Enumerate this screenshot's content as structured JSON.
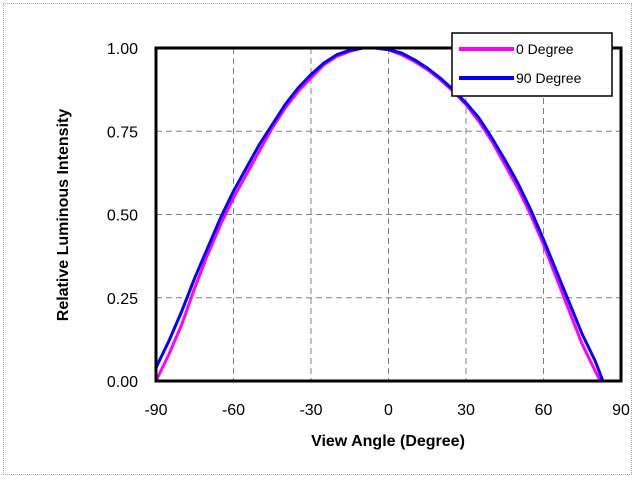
{
  "chart_data": {
    "type": "line",
    "title": "",
    "xlabel": "View Angle (Degree)",
    "ylabel": "Relative Luminous Intensity",
    "xlim": [
      -90,
      90
    ],
    "ylim": [
      0,
      1
    ],
    "x_ticks": [
      -90,
      -60,
      -30,
      0,
      30,
      60,
      90
    ],
    "x_tick_labels": [
      "-90",
      "-60",
      "-30",
      "0",
      "30",
      "60",
      "90"
    ],
    "y_ticks": [
      0,
      0.25,
      0.5,
      0.75,
      1
    ],
    "y_tick_labels": [
      "0.00",
      "0.25",
      "0.50",
      "0.75",
      "1.00"
    ],
    "grid": true,
    "legend_position": "top-right",
    "series": [
      {
        "name": "0 Degree",
        "color": "#ff00ff",
        "points": [
          [
            -90,
            0.0
          ],
          [
            -85,
            0.08
          ],
          [
            -80,
            0.17
          ],
          [
            -75,
            0.28
          ],
          [
            -70,
            0.38
          ],
          [
            -65,
            0.47
          ],
          [
            -60,
            0.55
          ],
          [
            -55,
            0.62
          ],
          [
            -50,
            0.69
          ],
          [
            -45,
            0.76
          ],
          [
            -40,
            0.82
          ],
          [
            -35,
            0.87
          ],
          [
            -30,
            0.91
          ],
          [
            -25,
            0.95
          ],
          [
            -20,
            0.975
          ],
          [
            -15,
            0.99
          ],
          [
            -10,
            1.0
          ],
          [
            -5,
            1.0
          ],
          [
            0,
            0.995
          ],
          [
            5,
            0.98
          ],
          [
            10,
            0.96
          ],
          [
            15,
            0.935
          ],
          [
            20,
            0.905
          ],
          [
            25,
            0.87
          ],
          [
            30,
            0.83
          ],
          [
            35,
            0.78
          ],
          [
            40,
            0.72
          ],
          [
            45,
            0.65
          ],
          [
            50,
            0.58
          ],
          [
            55,
            0.5
          ],
          [
            60,
            0.41
          ],
          [
            65,
            0.31
          ],
          [
            70,
            0.21
          ],
          [
            75,
            0.11
          ],
          [
            80,
            0.03
          ],
          [
            82,
            0.0
          ],
          [
            85,
            0.0
          ]
        ]
      },
      {
        "name": "90 Degree",
        "color": "#0000ff",
        "points": [
          [
            -90,
            0.04
          ],
          [
            -85,
            0.12
          ],
          [
            -80,
            0.21
          ],
          [
            -75,
            0.31
          ],
          [
            -70,
            0.4
          ],
          [
            -65,
            0.49
          ],
          [
            -60,
            0.57
          ],
          [
            -55,
            0.64
          ],
          [
            -50,
            0.71
          ],
          [
            -45,
            0.77
          ],
          [
            -40,
            0.83
          ],
          [
            -35,
            0.88
          ],
          [
            -30,
            0.92
          ],
          [
            -25,
            0.955
          ],
          [
            -20,
            0.98
          ],
          [
            -15,
            0.993
          ],
          [
            -10,
            1.0
          ],
          [
            -5,
            1.0
          ],
          [
            0,
            0.995
          ],
          [
            5,
            0.985
          ],
          [
            10,
            0.965
          ],
          [
            15,
            0.94
          ],
          [
            20,
            0.91
          ],
          [
            25,
            0.875
          ],
          [
            30,
            0.835
          ],
          [
            35,
            0.79
          ],
          [
            40,
            0.73
          ],
          [
            45,
            0.665
          ],
          [
            50,
            0.595
          ],
          [
            55,
            0.515
          ],
          [
            60,
            0.425
          ],
          [
            65,
            0.33
          ],
          [
            70,
            0.235
          ],
          [
            75,
            0.14
          ],
          [
            80,
            0.06
          ],
          [
            83,
            0.0
          ],
          [
            87,
            0.0
          ]
        ]
      }
    ]
  }
}
